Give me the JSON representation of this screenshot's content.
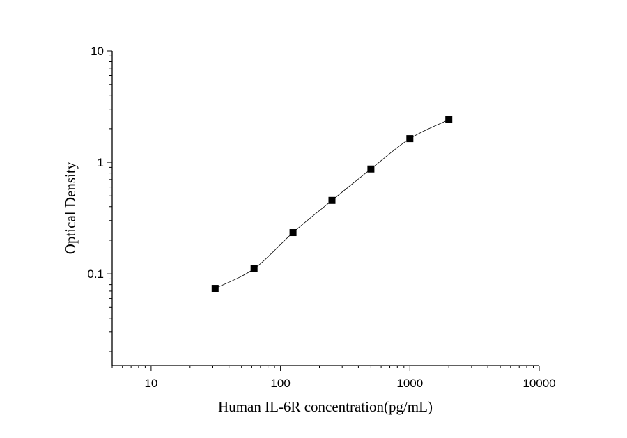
{
  "chart_data": {
    "type": "line",
    "x_label": "Human IL-6R concentration(pg/mL)",
    "y_label": "Optical Density",
    "x": [
      31.25,
      62.5,
      125,
      250,
      500,
      1000,
      2000
    ],
    "series": [
      {
        "values": [
          0.074,
          0.111,
          0.234,
          0.455,
          0.87,
          1.63,
          2.41
        ],
        "color": "#000000"
      }
    ],
    "xlim": [
      5,
      10000
    ],
    "ylim": [
      0.015,
      10
    ],
    "xticks": [
      10,
      100,
      1000,
      10000
    ],
    "yticks": [
      0.1,
      1,
      10
    ],
    "xscale": "log",
    "yscale": "log",
    "markers": "square",
    "smooth": true,
    "minor_ticks": true
  }
}
